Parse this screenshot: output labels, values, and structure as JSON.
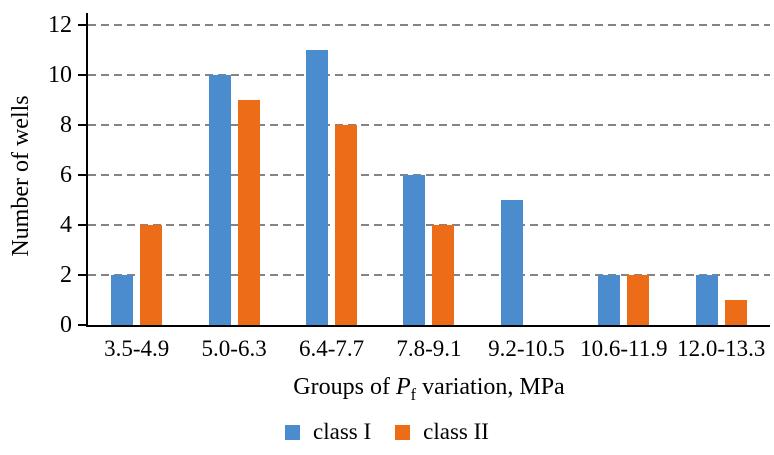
{
  "chart_data": {
    "type": "bar",
    "title": "",
    "ylabel": "Number of wells",
    "xlabel": "Groups of Pf variation, MPa",
    "xlabel_parts": {
      "prefix": "Groups of ",
      "symbol": "P",
      "subscript": "f",
      "suffix": " variation, MPa"
    },
    "categories": [
      "3.5-4.9",
      "5.0-6.3",
      "6.4-7.7",
      "7.8-9.1",
      "9.2-10.5",
      "10.6-11.9",
      "12.0-13.3"
    ],
    "series": [
      {
        "name": "class I",
        "color": "#4A8CCE",
        "values": [
          2,
          10,
          11,
          6,
          5,
          2,
          2
        ]
      },
      {
        "name": "class II",
        "color": "#EC6C17",
        "values": [
          4,
          9,
          8,
          4,
          0,
          2,
          1
        ]
      }
    ],
    "ylim": [
      0,
      12
    ],
    "yticks": [
      0,
      2,
      4,
      6,
      8,
      10,
      12
    ],
    "grid": "horizontal-dashed",
    "legend_position": "bottom"
  },
  "colors": {
    "background": "#FFFFFF",
    "axis": "#000000",
    "gridline": "#848484",
    "text": "#000000"
  }
}
